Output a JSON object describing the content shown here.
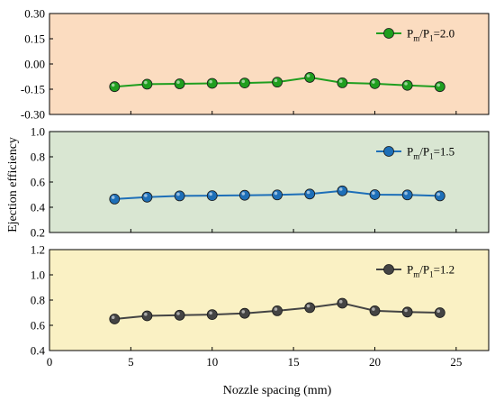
{
  "chart_data": [
    {
      "type": "line",
      "panel_color": "#fbdcc0",
      "series": [
        {
          "name": "Pm/P1=2.0",
          "legend": {
            "base": "P",
            "sub1": "m",
            "mid": "/P",
            "sub2": "1",
            "tail": "=2.0"
          },
          "color": "#1f9e1f",
          "x": [
            4,
            6,
            8,
            10,
            12,
            14,
            16,
            18,
            20,
            22,
            24
          ],
          "values": [
            -0.135,
            -0.12,
            -0.118,
            -0.115,
            -0.113,
            -0.108,
            -0.08,
            -0.112,
            -0.117,
            -0.127,
            -0.135
          ]
        }
      ],
      "xlim": [
        0,
        27
      ],
      "ylim": [
        -0.3,
        0.3
      ],
      "yticks": [
        -0.3,
        -0.15,
        0.0,
        0.15,
        0.3
      ],
      "ytick_labels": [
        "-0.30",
        "-0.15",
        "0.00",
        "0.15",
        "0.30"
      ],
      "legend_position": "top-right"
    },
    {
      "type": "line",
      "panel_color": "#d9e6d2",
      "series": [
        {
          "name": "Pm/P1=1.5",
          "legend": {
            "base": "P",
            "sub1": "m",
            "mid": "/P",
            "sub2": "1",
            "tail": "=1.5"
          },
          "color": "#1e6fb8",
          "x": [
            4,
            6,
            8,
            10,
            12,
            14,
            16,
            18,
            20,
            22,
            24
          ],
          "values": [
            0.465,
            0.48,
            0.49,
            0.492,
            0.495,
            0.498,
            0.505,
            0.53,
            0.5,
            0.498,
            0.49
          ]
        }
      ],
      "xlim": [
        0,
        27
      ],
      "ylim": [
        0.2,
        1.0
      ],
      "yticks": [
        0.2,
        0.4,
        0.6,
        0.8,
        1.0
      ],
      "ytick_labels": [
        "0.2",
        "0.4",
        "0.6",
        "0.8",
        "1.0"
      ],
      "legend_position": "top-right"
    },
    {
      "type": "line",
      "panel_color": "#faf1c4",
      "series": [
        {
          "name": "Pm/P1=1.2",
          "legend": {
            "base": "P",
            "sub1": "m",
            "mid": "/P",
            "sub2": "1",
            "tail": "=1.2"
          },
          "color": "#444444",
          "x": [
            4,
            6,
            8,
            10,
            12,
            14,
            16,
            18,
            20,
            22,
            24
          ],
          "values": [
            0.65,
            0.675,
            0.68,
            0.685,
            0.695,
            0.715,
            0.74,
            0.775,
            0.715,
            0.705,
            0.7
          ]
        }
      ],
      "xlim": [
        0,
        27
      ],
      "ylim": [
        0.4,
        1.2
      ],
      "yticks": [
        0.4,
        0.6,
        0.8,
        1.0,
        1.2
      ],
      "ytick_labels": [
        "0.4",
        "0.6",
        "0.8",
        "1.0",
        "1.2"
      ],
      "legend_position": "top-right"
    }
  ],
  "shared_axes": {
    "xlabel": "Nozzle spacing (mm)",
    "ylabel": "Ejection efficiency",
    "xticks": [
      0,
      5,
      10,
      15,
      20,
      25
    ],
    "xtick_labels": [
      "0",
      "5",
      "10",
      "15",
      "20",
      "25"
    ]
  }
}
